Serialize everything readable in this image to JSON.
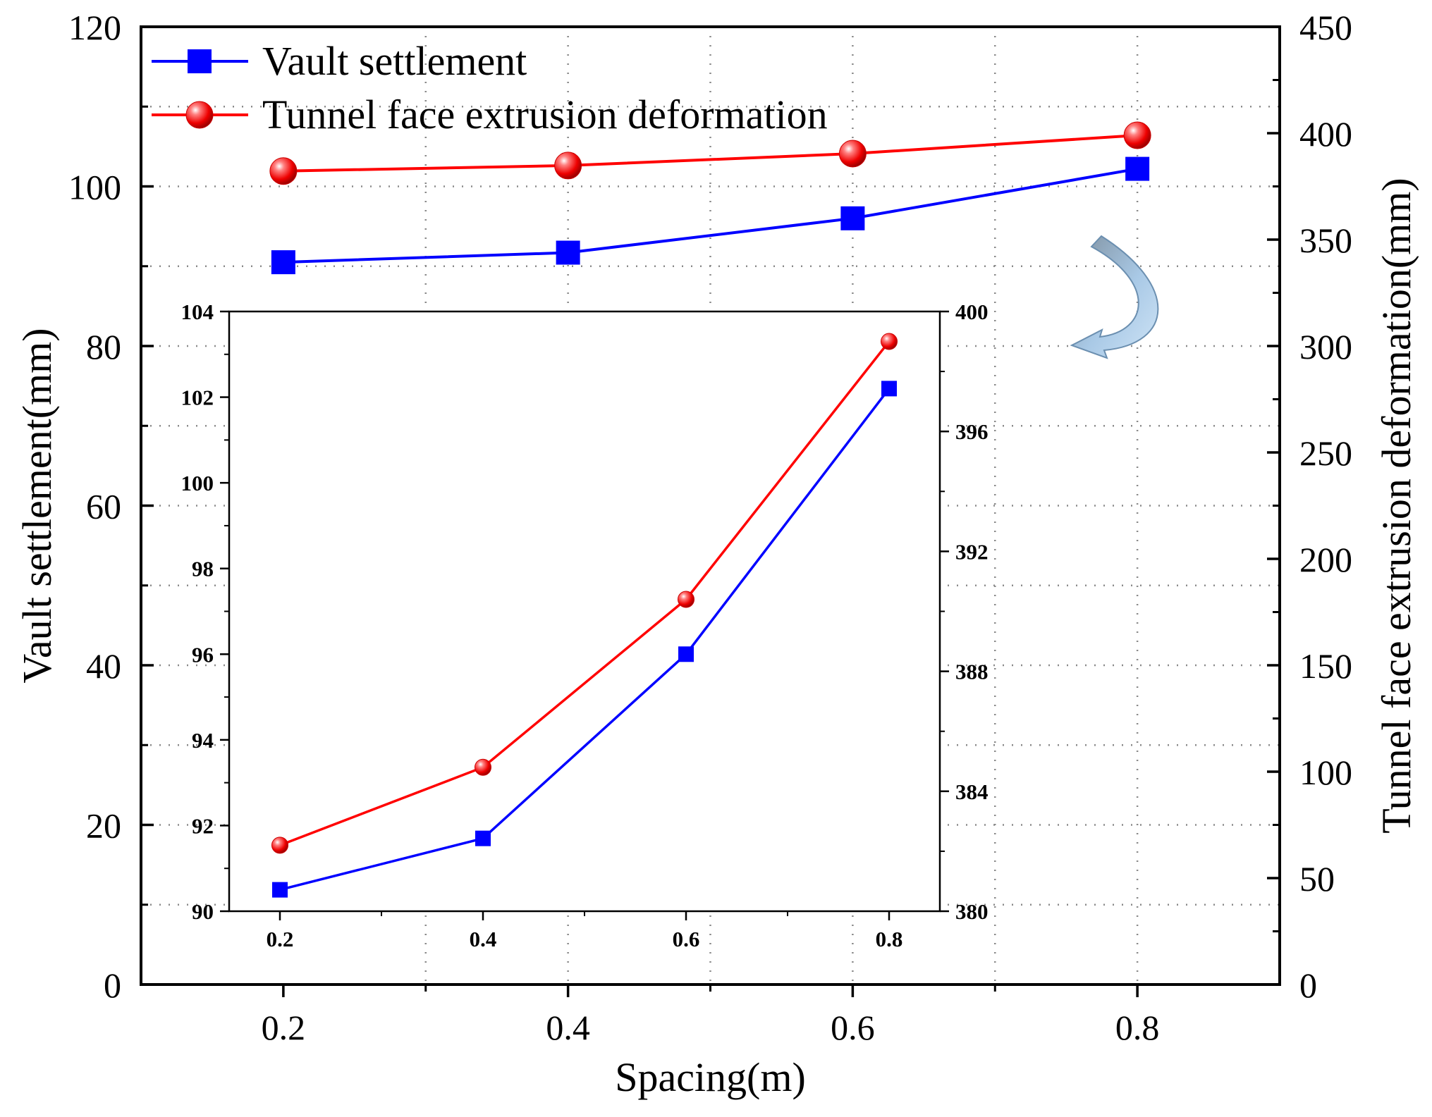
{
  "chart_data": [
    {
      "id": "main",
      "type": "line",
      "dual_axis": true,
      "xlabel": "Spacing(m)",
      "ylabel": "Vault settlement(mm)",
      "y2label": "Tunnel face extrusion deformation(mm)",
      "xlim": [
        0.1,
        0.9
      ],
      "ylim": [
        0,
        120
      ],
      "y2lim": [
        0,
        450
      ],
      "x_ticks": [
        0.2,
        0.4,
        0.6,
        0.8
      ],
      "x_tick_labels": [
        "0.2",
        "0.4",
        "0.6",
        "0.8"
      ],
      "y_ticks": [
        0,
        20,
        40,
        60,
        80,
        100,
        120
      ],
      "y_tick_labels": [
        "0",
        "20",
        "40",
        "60",
        "80",
        "100",
        "120"
      ],
      "y2_ticks": [
        0,
        50,
        100,
        150,
        200,
        250,
        300,
        350,
        400,
        450
      ],
      "y2_tick_labels": [
        "0",
        "50",
        "100",
        "150",
        "200",
        "250",
        "300",
        "350",
        "400",
        "450"
      ],
      "grid": "dotted",
      "legend_position": "top-left",
      "series": [
        {
          "name": "Vault settlement",
          "axis": "left",
          "color": "#0000ff",
          "marker": "square",
          "x": [
            0.2,
            0.4,
            0.6,
            0.8
          ],
          "values": [
            90.5,
            91.7,
            96.0,
            102.2
          ]
        },
        {
          "name": "Tunnel face extrusion deformation",
          "axis": "right",
          "color": "#ff0000",
          "marker": "circle",
          "x": [
            0.2,
            0.4,
            0.6,
            0.8
          ],
          "values": [
            382.2,
            384.8,
            390.4,
            399.0
          ]
        }
      ]
    },
    {
      "id": "inset",
      "type": "line",
      "dual_axis": true,
      "xlim": [
        0.15,
        0.85
      ],
      "ylim": [
        90,
        104
      ],
      "y2lim": [
        380,
        400
      ],
      "x_ticks": [
        0.2,
        0.4,
        0.6,
        0.8
      ],
      "x_tick_labels": [
        "0.2",
        "0.4",
        "0.6",
        "0.8"
      ],
      "y_ticks": [
        90,
        92,
        94,
        96,
        98,
        100,
        102,
        104
      ],
      "y_tick_labels": [
        "90",
        "92",
        "94",
        "96",
        "98",
        "100",
        "102",
        "104"
      ],
      "y2_ticks": [
        380,
        384,
        388,
        392,
        396,
        400
      ],
      "y2_tick_labels": [
        "380",
        "384",
        "388",
        "392",
        "396",
        "400"
      ],
      "series": [
        {
          "name": "Vault settlement",
          "axis": "left",
          "color": "#0000ff",
          "marker": "square",
          "x": [
            0.2,
            0.4,
            0.6,
            0.8
          ],
          "values": [
            90.5,
            91.7,
            96.0,
            102.2
          ]
        },
        {
          "name": "Tunnel face extrusion deformation",
          "axis": "right",
          "color": "#ff0000",
          "marker": "circle",
          "x": [
            0.2,
            0.4,
            0.6,
            0.8
          ],
          "values": [
            382.2,
            384.8,
            390.4,
            399.0
          ]
        }
      ]
    }
  ],
  "annotations": {
    "arrow_color": "#a8cce8",
    "arrow_edge_color": "#6b8fb0"
  }
}
